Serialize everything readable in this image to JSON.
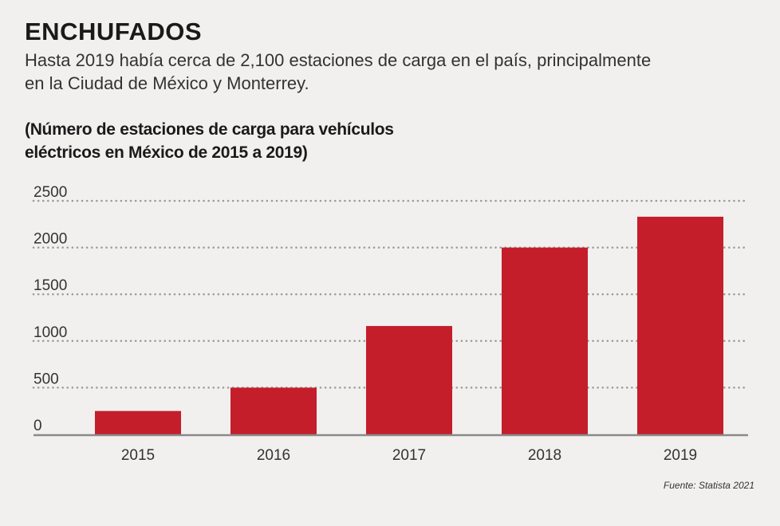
{
  "header": {
    "title": "ENCHUFADOS",
    "subtitle_line1": "Hasta 2019 había cerca de 2,100 estaciones de carga en el país, principalmente",
    "subtitle_line2": "en la Ciudad de México y Monterrey."
  },
  "chart_data": {
    "type": "bar",
    "title_line1": "(Número de estaciones de carga para vehículos",
    "title_line2": "eléctricos en México de 2015 a 2019)",
    "categories": [
      "2015",
      "2016",
      "2017",
      "2018",
      "2019"
    ],
    "values": [
      250,
      500,
      1160,
      2000,
      2330
    ],
    "ylim": [
      0,
      2500
    ],
    "yticks": [
      0,
      500,
      1000,
      1500,
      2000,
      2500
    ],
    "xlabel": "",
    "ylabel": "",
    "grid": true,
    "grid_style": "dotted",
    "bar_color": "#c41e2a",
    "axis_color": "#8a8a8a",
    "grid_color": "#9a9a9a"
  },
  "footer": {
    "source": "Fuente: Statista 2021"
  }
}
